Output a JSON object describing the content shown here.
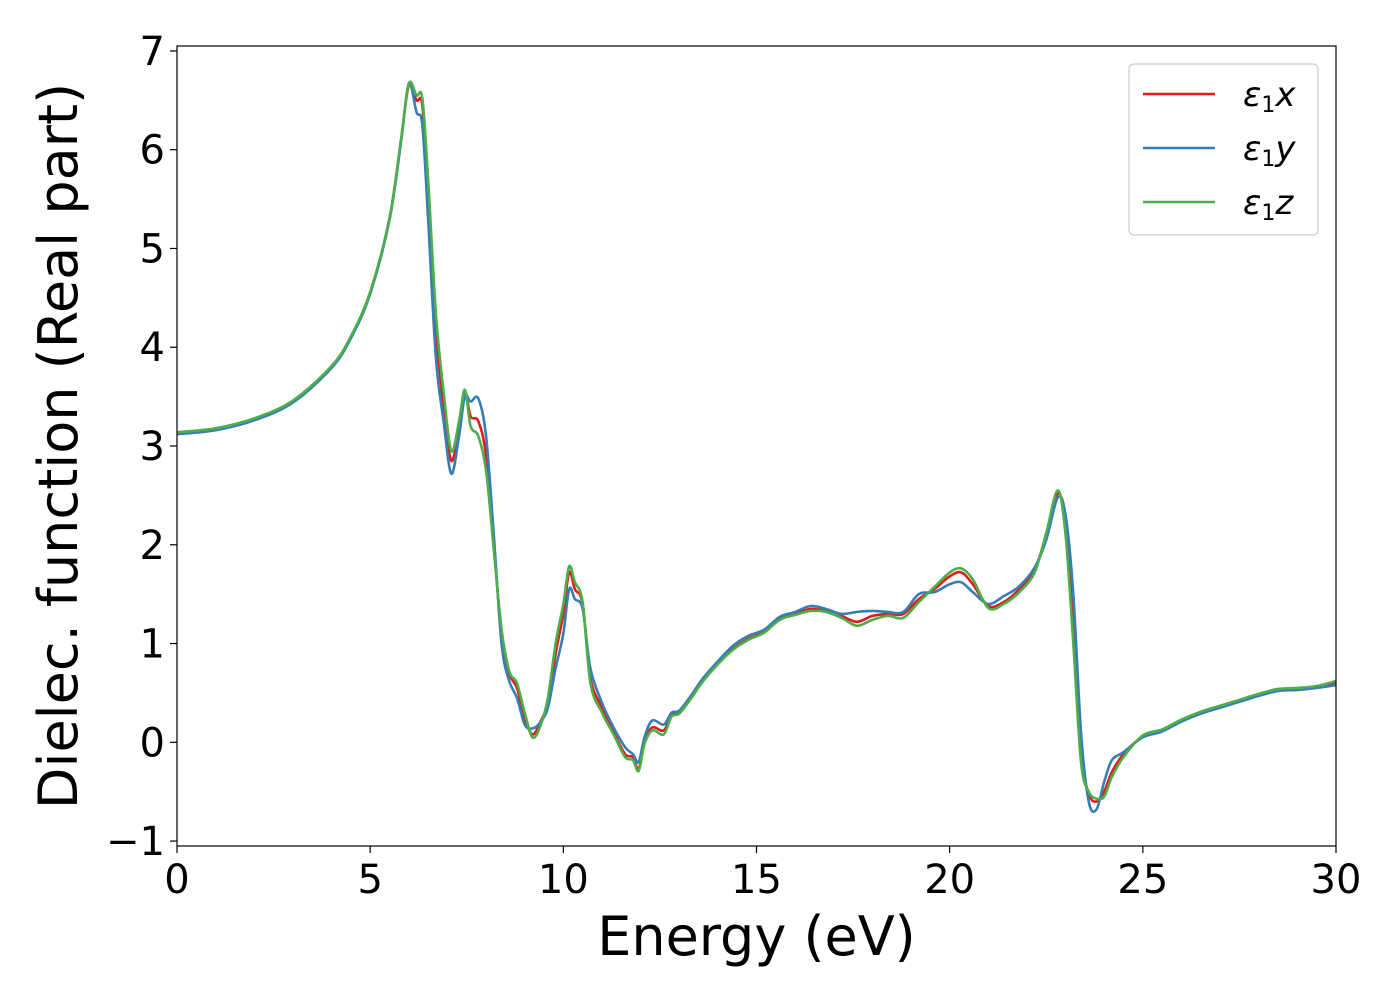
{
  "chart_data": {
    "type": "line",
    "xlabel": "Energy (eV)",
    "ylabel": "Dielec. function (Real part)",
    "xlim": [
      0,
      30
    ],
    "ylim": [
      -1.05,
      7.05
    ],
    "xticks": [
      0,
      5,
      10,
      15,
      20,
      25,
      30
    ],
    "xtick_labels": [
      "0",
      "5",
      "10",
      "15",
      "20",
      "25",
      "30"
    ],
    "yticks": [
      -1,
      0,
      1,
      2,
      3,
      4,
      5,
      6,
      7
    ],
    "ytick_labels": [
      "−1",
      "0",
      "1",
      "2",
      "3",
      "4",
      "5",
      "6",
      "7"
    ],
    "grid": false,
    "legend": "top-right",
    "series": [
      {
        "name": "ε1x",
        "label_base": "ε",
        "label_sub": "1",
        "label_var": "x",
        "color": "#e41a1c",
        "points": [
          [
            0,
            3.13
          ],
          [
            1,
            3.17
          ],
          [
            2,
            3.27
          ],
          [
            3,
            3.45
          ],
          [
            4,
            3.8
          ],
          [
            4.5,
            4.1
          ],
          [
            5,
            4.55
          ],
          [
            5.5,
            5.3
          ],
          [
            5.8,
            6.1
          ],
          [
            6.0,
            6.65
          ],
          [
            6.2,
            6.5
          ],
          [
            6.35,
            6.45
          ],
          [
            6.5,
            5.6
          ],
          [
            6.7,
            4.2
          ],
          [
            6.9,
            3.4
          ],
          [
            7.1,
            2.85
          ],
          [
            7.3,
            3.2
          ],
          [
            7.45,
            3.55
          ],
          [
            7.6,
            3.3
          ],
          [
            7.8,
            3.25
          ],
          [
            8.0,
            2.9
          ],
          [
            8.2,
            2.0
          ],
          [
            8.4,
            1.1
          ],
          [
            8.6,
            0.7
          ],
          [
            8.8,
            0.55
          ],
          [
            9.0,
            0.25
          ],
          [
            9.2,
            0.08
          ],
          [
            9.4,
            0.2
          ],
          [
            9.6,
            0.4
          ],
          [
            9.8,
            0.9
          ],
          [
            10.0,
            1.3
          ],
          [
            10.15,
            1.72
          ],
          [
            10.3,
            1.55
          ],
          [
            10.5,
            1.4
          ],
          [
            10.7,
            0.65
          ],
          [
            11.0,
            0.35
          ],
          [
            11.3,
            0.1
          ],
          [
            11.6,
            -0.12
          ],
          [
            11.8,
            -0.15
          ],
          [
            11.95,
            -0.27
          ],
          [
            12.1,
            0.0
          ],
          [
            12.3,
            0.15
          ],
          [
            12.6,
            0.12
          ],
          [
            12.8,
            0.28
          ],
          [
            13.0,
            0.3
          ],
          [
            13.3,
            0.45
          ],
          [
            13.6,
            0.62
          ],
          [
            14.0,
            0.8
          ],
          [
            14.4,
            0.95
          ],
          [
            14.8,
            1.05
          ],
          [
            15.2,
            1.12
          ],
          [
            15.6,
            1.25
          ],
          [
            16.0,
            1.3
          ],
          [
            16.4,
            1.35
          ],
          [
            16.8,
            1.33
          ],
          [
            17.2,
            1.28
          ],
          [
            17.6,
            1.22
          ],
          [
            18.0,
            1.28
          ],
          [
            18.4,
            1.3
          ],
          [
            18.8,
            1.3
          ],
          [
            19.2,
            1.45
          ],
          [
            19.6,
            1.55
          ],
          [
            20.0,
            1.68
          ],
          [
            20.3,
            1.72
          ],
          [
            20.6,
            1.6
          ],
          [
            21.0,
            1.38
          ],
          [
            21.4,
            1.42
          ],
          [
            21.8,
            1.55
          ],
          [
            22.2,
            1.75
          ],
          [
            22.5,
            2.1
          ],
          [
            22.8,
            2.52
          ],
          [
            23.0,
            2.2
          ],
          [
            23.2,
            1.2
          ],
          [
            23.4,
            -0.1
          ],
          [
            23.6,
            -0.52
          ],
          [
            23.8,
            -0.6
          ],
          [
            24.0,
            -0.5
          ],
          [
            24.2,
            -0.3
          ],
          [
            24.5,
            -0.12
          ],
          [
            25.0,
            0.06
          ],
          [
            25.5,
            0.12
          ],
          [
            26.0,
            0.22
          ],
          [
            26.5,
            0.3
          ],
          [
            27.0,
            0.36
          ],
          [
            27.5,
            0.42
          ],
          [
            28.0,
            0.48
          ],
          [
            28.5,
            0.53
          ],
          [
            29.0,
            0.54
          ],
          [
            29.5,
            0.56
          ],
          [
            30.0,
            0.6
          ]
        ]
      },
      {
        "name": "ε1y",
        "label_base": "ε",
        "label_sub": "1",
        "label_var": "y",
        "color": "#377eb8",
        "points": [
          [
            0,
            3.12
          ],
          [
            1,
            3.16
          ],
          [
            2,
            3.26
          ],
          [
            3,
            3.44
          ],
          [
            4,
            3.79
          ],
          [
            4.5,
            4.09
          ],
          [
            5,
            4.54
          ],
          [
            5.5,
            5.29
          ],
          [
            5.8,
            6.08
          ],
          [
            6.0,
            6.67
          ],
          [
            6.2,
            6.38
          ],
          [
            6.35,
            6.25
          ],
          [
            6.5,
            5.3
          ],
          [
            6.7,
            3.9
          ],
          [
            6.9,
            3.25
          ],
          [
            7.1,
            2.72
          ],
          [
            7.3,
            3.1
          ],
          [
            7.45,
            3.5
          ],
          [
            7.6,
            3.45
          ],
          [
            7.8,
            3.48
          ],
          [
            8.0,
            3.1
          ],
          [
            8.2,
            2.1
          ],
          [
            8.4,
            1.0
          ],
          [
            8.6,
            0.62
          ],
          [
            8.8,
            0.45
          ],
          [
            9.0,
            0.18
          ],
          [
            9.2,
            0.14
          ],
          [
            9.4,
            0.2
          ],
          [
            9.6,
            0.35
          ],
          [
            9.8,
            0.75
          ],
          [
            10.0,
            1.1
          ],
          [
            10.15,
            1.55
          ],
          [
            10.3,
            1.45
          ],
          [
            10.5,
            1.35
          ],
          [
            10.7,
            0.75
          ],
          [
            11.0,
            0.4
          ],
          [
            11.3,
            0.15
          ],
          [
            11.6,
            -0.05
          ],
          [
            11.8,
            -0.12
          ],
          [
            11.95,
            -0.2
          ],
          [
            12.1,
            0.05
          ],
          [
            12.3,
            0.22
          ],
          [
            12.6,
            0.18
          ],
          [
            12.8,
            0.3
          ],
          [
            13.0,
            0.32
          ],
          [
            13.3,
            0.47
          ],
          [
            13.6,
            0.64
          ],
          [
            14.0,
            0.82
          ],
          [
            14.4,
            0.98
          ],
          [
            14.8,
            1.08
          ],
          [
            15.2,
            1.14
          ],
          [
            15.6,
            1.27
          ],
          [
            16.0,
            1.32
          ],
          [
            16.4,
            1.38
          ],
          [
            16.8,
            1.35
          ],
          [
            17.2,
            1.3
          ],
          [
            17.6,
            1.32
          ],
          [
            18.0,
            1.33
          ],
          [
            18.4,
            1.32
          ],
          [
            18.8,
            1.32
          ],
          [
            19.2,
            1.5
          ],
          [
            19.6,
            1.52
          ],
          [
            20.0,
            1.6
          ],
          [
            20.3,
            1.62
          ],
          [
            20.6,
            1.52
          ],
          [
            21.0,
            1.4
          ],
          [
            21.4,
            1.48
          ],
          [
            21.8,
            1.58
          ],
          [
            22.2,
            1.77
          ],
          [
            22.5,
            2.05
          ],
          [
            22.8,
            2.48
          ],
          [
            23.0,
            2.3
          ],
          [
            23.2,
            1.5
          ],
          [
            23.4,
            0.1
          ],
          [
            23.6,
            -0.6
          ],
          [
            23.8,
            -0.68
          ],
          [
            24.0,
            -0.4
          ],
          [
            24.2,
            -0.18
          ],
          [
            24.5,
            -0.1
          ],
          [
            25.0,
            0.05
          ],
          [
            25.5,
            0.11
          ],
          [
            26.0,
            0.21
          ],
          [
            26.5,
            0.29
          ],
          [
            27.0,
            0.35
          ],
          [
            27.5,
            0.41
          ],
          [
            28.0,
            0.47
          ],
          [
            28.5,
            0.52
          ],
          [
            29.0,
            0.53
          ],
          [
            29.5,
            0.55
          ],
          [
            30.0,
            0.58
          ]
        ]
      },
      {
        "name": "ε1z",
        "label_base": "ε",
        "label_sub": "1",
        "label_var": "z",
        "color": "#4daf4a",
        "points": [
          [
            0,
            3.14
          ],
          [
            1,
            3.18
          ],
          [
            2,
            3.28
          ],
          [
            3,
            3.46
          ],
          [
            4,
            3.81
          ],
          [
            4.5,
            4.11
          ],
          [
            5,
            4.56
          ],
          [
            5.5,
            5.31
          ],
          [
            5.8,
            6.11
          ],
          [
            6.0,
            6.67
          ],
          [
            6.2,
            6.55
          ],
          [
            6.35,
            6.52
          ],
          [
            6.5,
            5.7
          ],
          [
            6.7,
            4.35
          ],
          [
            6.9,
            3.55
          ],
          [
            7.1,
            2.95
          ],
          [
            7.3,
            3.25
          ],
          [
            7.45,
            3.57
          ],
          [
            7.6,
            3.2
          ],
          [
            7.8,
            3.1
          ],
          [
            8.0,
            2.75
          ],
          [
            8.2,
            1.95
          ],
          [
            8.4,
            1.15
          ],
          [
            8.6,
            0.72
          ],
          [
            8.8,
            0.6
          ],
          [
            9.0,
            0.3
          ],
          [
            9.2,
            0.05
          ],
          [
            9.4,
            0.16
          ],
          [
            9.6,
            0.45
          ],
          [
            9.8,
            1.0
          ],
          [
            10.0,
            1.4
          ],
          [
            10.15,
            1.78
          ],
          [
            10.3,
            1.62
          ],
          [
            10.5,
            1.42
          ],
          [
            10.7,
            0.6
          ],
          [
            11.0,
            0.3
          ],
          [
            11.3,
            0.08
          ],
          [
            11.6,
            -0.15
          ],
          [
            11.8,
            -0.18
          ],
          [
            11.95,
            -0.29
          ],
          [
            12.1,
            -0.02
          ],
          [
            12.3,
            0.12
          ],
          [
            12.6,
            0.08
          ],
          [
            12.8,
            0.26
          ],
          [
            13.0,
            0.29
          ],
          [
            13.3,
            0.44
          ],
          [
            13.6,
            0.61
          ],
          [
            14.0,
            0.79
          ],
          [
            14.4,
            0.94
          ],
          [
            14.8,
            1.04
          ],
          [
            15.2,
            1.11
          ],
          [
            15.6,
            1.24
          ],
          [
            16.0,
            1.29
          ],
          [
            16.4,
            1.33
          ],
          [
            16.8,
            1.32
          ],
          [
            17.2,
            1.26
          ],
          [
            17.6,
            1.18
          ],
          [
            18.0,
            1.24
          ],
          [
            18.4,
            1.28
          ],
          [
            18.8,
            1.26
          ],
          [
            19.2,
            1.42
          ],
          [
            19.6,
            1.57
          ],
          [
            20.0,
            1.72
          ],
          [
            20.3,
            1.76
          ],
          [
            20.6,
            1.65
          ],
          [
            21.0,
            1.36
          ],
          [
            21.4,
            1.4
          ],
          [
            21.8,
            1.52
          ],
          [
            22.2,
            1.72
          ],
          [
            22.5,
            2.12
          ],
          [
            22.8,
            2.55
          ],
          [
            23.0,
            2.1
          ],
          [
            23.2,
            1.0
          ],
          [
            23.4,
            -0.2
          ],
          [
            23.6,
            -0.5
          ],
          [
            23.8,
            -0.57
          ],
          [
            24.0,
            -0.55
          ],
          [
            24.2,
            -0.35
          ],
          [
            24.5,
            -0.15
          ],
          [
            25.0,
            0.07
          ],
          [
            25.5,
            0.13
          ],
          [
            26.0,
            0.23
          ],
          [
            26.5,
            0.31
          ],
          [
            27.0,
            0.37
          ],
          [
            27.5,
            0.43
          ],
          [
            28.0,
            0.49
          ],
          [
            28.5,
            0.54
          ],
          [
            29.0,
            0.55
          ],
          [
            29.5,
            0.57
          ],
          [
            30.0,
            0.62
          ]
        ]
      }
    ]
  }
}
